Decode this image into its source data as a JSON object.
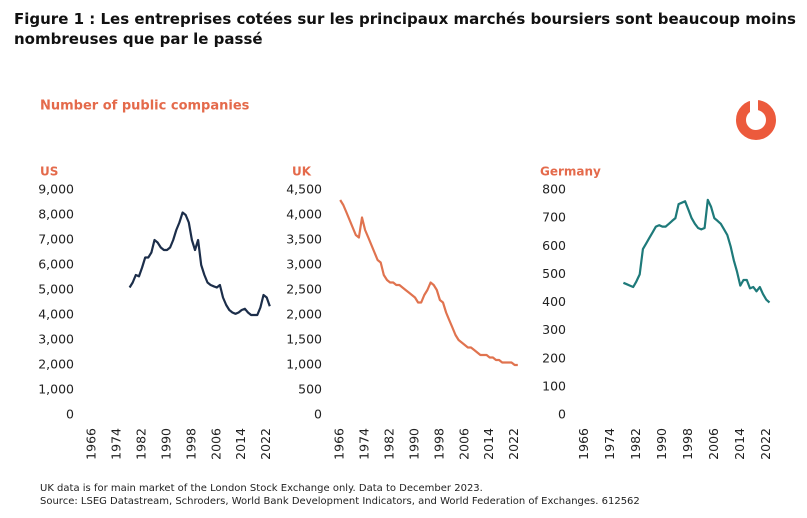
{
  "header": {
    "title": "Figure 1 : Les entreprises cotées sur les principaux marchés boursiers sont beaucoup moins nombreuses que par le passé",
    "subtitle": "Number of public companies"
  },
  "footer": {
    "note": "UK data is for main market  of the London Stock Exchange only. Data to December 2023.",
    "source": "Source: LSEG Datastream, Schroders, World Bank Development Indicators, and World Federation of Exchanges. 612562"
  },
  "chart_data": [
    {
      "type": "line",
      "title": "US",
      "color": "#1c2e4a",
      "x": [
        1978,
        1979,
        1980,
        1981,
        1982,
        1983,
        1984,
        1985,
        1986,
        1987,
        1988,
        1989,
        1990,
        1991,
        1992,
        1993,
        1994,
        1995,
        1996,
        1997,
        1998,
        1999,
        2000,
        2001,
        2002,
        2003,
        2004,
        2005,
        2006,
        2007,
        2008,
        2009,
        2010,
        2011,
        2012,
        2013,
        2014,
        2015,
        2016,
        2017,
        2018,
        2019,
        2020,
        2021,
        2022,
        2023
      ],
      "values": [
        5100,
        5300,
        5600,
        5550,
        5900,
        6300,
        6300,
        6500,
        7000,
        6900,
        6700,
        6600,
        6600,
        6700,
        7000,
        7400,
        7700,
        8100,
        8000,
        7700,
        7000,
        6600,
        7000,
        6000,
        5600,
        5300,
        5200,
        5150,
        5100,
        5200,
        4700,
        4400,
        4200,
        4100,
        4050,
        4100,
        4200,
        4250,
        4100,
        4000,
        4000,
        4000,
        4300,
        4800,
        4700,
        4350
      ],
      "xlim": [
        1964,
        2025
      ],
      "xticks": [
        1966,
        1974,
        1982,
        1990,
        1998,
        2006,
        2014,
        2022
      ],
      "ylim": [
        0,
        9000
      ],
      "yticks": [
        0,
        {
          "value": 1000,
          "label": "1,000"
        },
        {
          "value": 2000,
          "label": "2,000"
        },
        {
          "value": 3000,
          "label": "3,000"
        },
        {
          "value": 4000,
          "label": "4,000"
        },
        {
          "value": 5000,
          "label": "5,000"
        },
        {
          "value": 6000,
          "label": "6,000"
        },
        {
          "value": 7000,
          "label": "7,000"
        },
        {
          "value": 8000,
          "label": "8,000"
        },
        {
          "value": 9000,
          "label": "9,000"
        }
      ]
    },
    {
      "type": "line",
      "title": "UK",
      "color": "#e0734f",
      "x": [
        1966,
        1967,
        1968,
        1969,
        1970,
        1971,
        1972,
        1973,
        1974,
        1975,
        1976,
        1977,
        1978,
        1979,
        1980,
        1981,
        1982,
        1983,
        1984,
        1985,
        1986,
        1987,
        1988,
        1989,
        1990,
        1991,
        1992,
        1993,
        1994,
        1995,
        1996,
        1997,
        1998,
        1999,
        2000,
        2001,
        2002,
        2003,
        2004,
        2005,
        2006,
        2007,
        2008,
        2009,
        2010,
        2011,
        2012,
        2013,
        2014,
        2015,
        2016,
        2017,
        2018,
        2019,
        2020,
        2021,
        2022,
        2023
      ],
      "values": [
        4300,
        4200,
        4050,
        3900,
        3750,
        3600,
        3550,
        3950,
        3700,
        3550,
        3400,
        3250,
        3100,
        3050,
        2800,
        2700,
        2650,
        2650,
        2600,
        2600,
        2550,
        2500,
        2450,
        2400,
        2350,
        2250,
        2250,
        2400,
        2500,
        2650,
        2600,
        2500,
        2300,
        2250,
        2050,
        1900,
        1750,
        1600,
        1500,
        1450,
        1400,
        1350,
        1350,
        1300,
        1250,
        1200,
        1200,
        1200,
        1150,
        1150,
        1100,
        1100,
        1050,
        1050,
        1050,
        1050,
        1000,
        1000
      ],
      "xlim": [
        1964,
        2025
      ],
      "xticks": [
        1966,
        1974,
        1982,
        1990,
        1998,
        2006,
        2014,
        2022
      ],
      "ylim": [
        0,
        4500
      ],
      "yticks": [
        0,
        500,
        {
          "value": 1000,
          "label": "1,000"
        },
        {
          "value": 1500,
          "label": "1,500"
        },
        {
          "value": 2000,
          "label": "2,000"
        },
        {
          "value": 2500,
          "label": "2,500"
        },
        {
          "value": 3000,
          "label": "3,000"
        },
        {
          "value": 3500,
          "label": "3,500"
        },
        {
          "value": 4000,
          "label": "4,000"
        },
        {
          "value": 4500,
          "label": "4,500"
        }
      ]
    },
    {
      "type": "line",
      "title": "Germany",
      "color": "#1e7a7a",
      "x": [
        1978,
        1979,
        1980,
        1981,
        1982,
        1983,
        1984,
        1985,
        1986,
        1987,
        1988,
        1989,
        1990,
        1991,
        1992,
        1993,
        1994,
        1995,
        1996,
        1997,
        1998,
        1999,
        2000,
        2001,
        2002,
        2003,
        2004,
        2005,
        2006,
        2007,
        2008,
        2009,
        2010,
        2011,
        2012,
        2013,
        2014,
        2015,
        2016,
        2017,
        2018,
        2019,
        2020,
        2021,
        2022,
        2023
      ],
      "values": [
        470,
        465,
        460,
        455,
        475,
        500,
        590,
        610,
        630,
        650,
        670,
        675,
        670,
        670,
        680,
        690,
        700,
        750,
        755,
        760,
        730,
        700,
        680,
        665,
        660,
        665,
        765,
        740,
        700,
        690,
        680,
        660,
        640,
        600,
        550,
        510,
        460,
        480,
        480,
        450,
        455,
        440,
        455,
        430,
        410,
        400
      ],
      "xlim": [
        1964,
        2025
      ],
      "xticks": [
        1966,
        1974,
        1982,
        1990,
        1998,
        2006,
        2014,
        2022
      ],
      "ylim": [
        0,
        800
      ],
      "yticks": [
        0,
        100,
        200,
        300,
        400,
        500,
        600,
        700,
        800
      ]
    }
  ]
}
